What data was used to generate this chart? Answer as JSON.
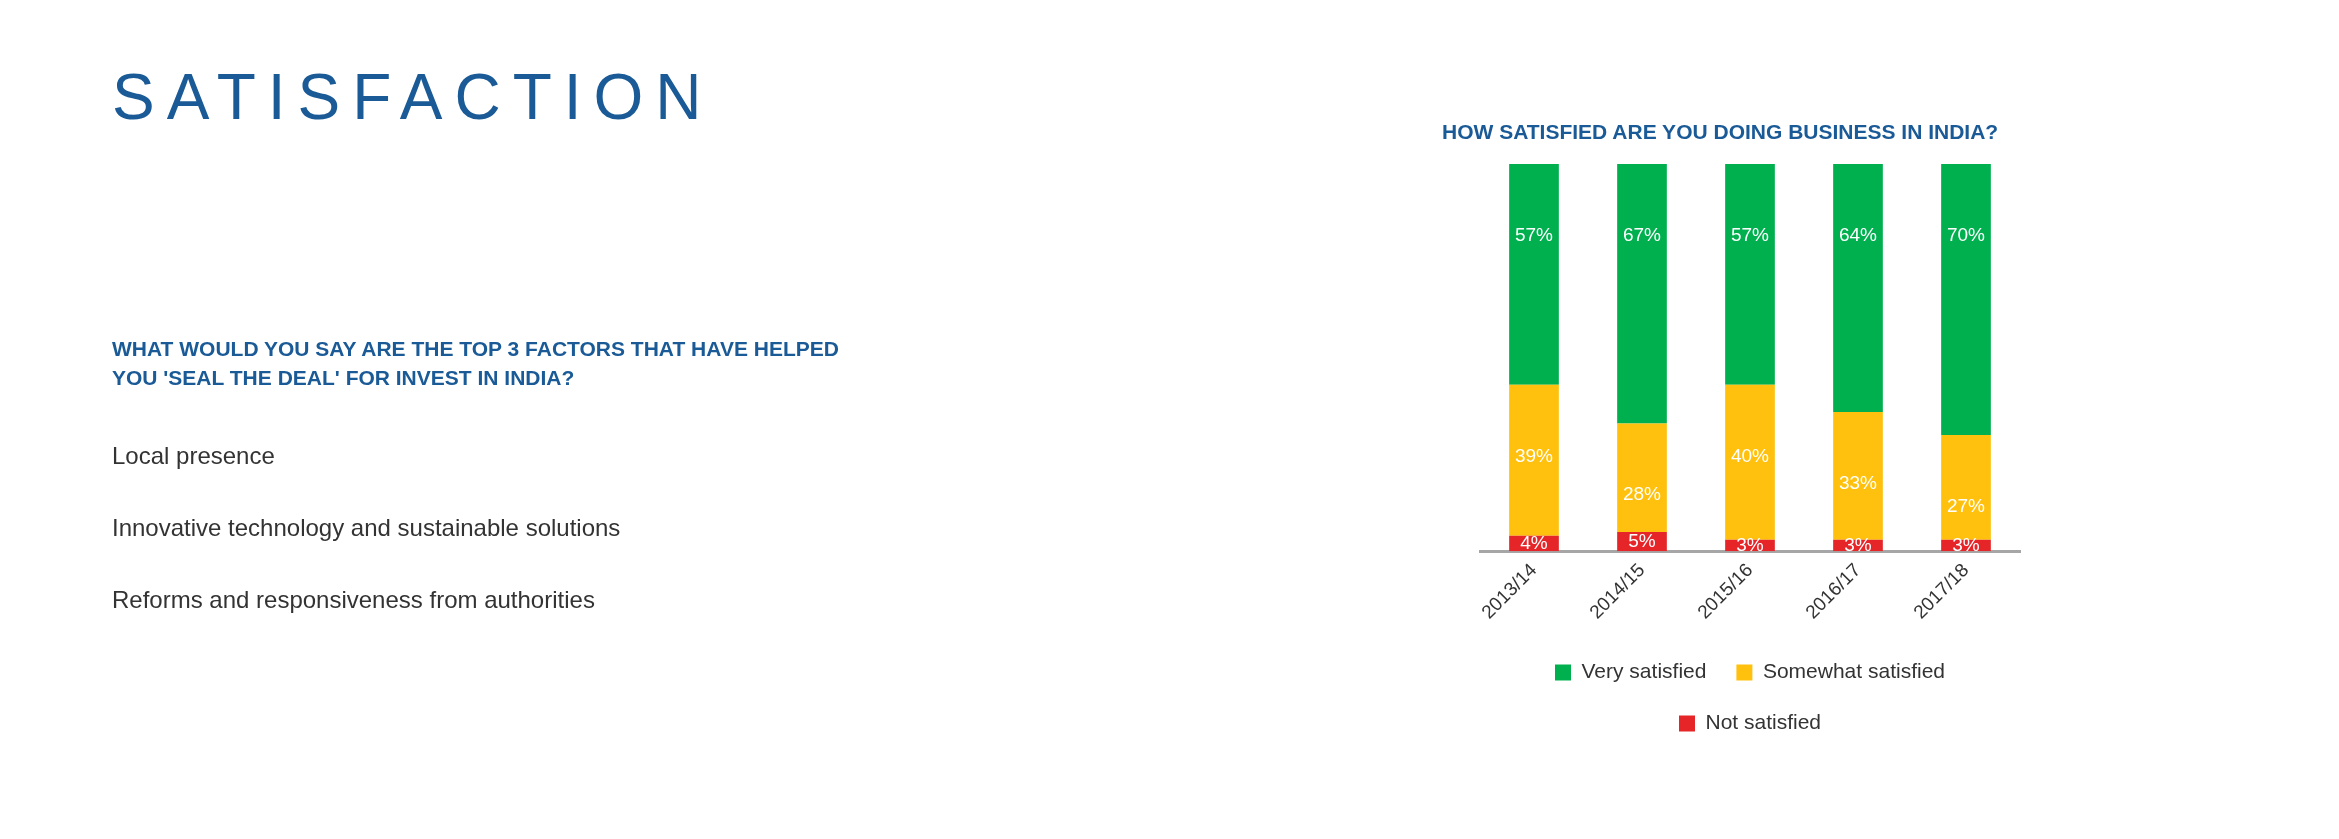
{
  "chart_data": [
    {
      "type": "other",
      "title": "SATISFACTION",
      "subtitle": "WHAT WOULD YOU SAY ARE THE TOP 3 FACTORS THAT HAVE HELPED YOU 'SEAL THE DEAL' FOR INVEST IN INDIA?",
      "annotations": [
        "Local presence",
        "Innovative technology and sustainable solutions",
        "Reforms and responsiveness from authorities"
      ]
    },
    {
      "type": "bar",
      "title": "HOW SATISFIED ARE YOU DOING BUSINESS IN INDIA?",
      "stacked": true,
      "categories": [
        "2013/14",
        "2014/15",
        "2015/16",
        "2016/17",
        "2017/18"
      ],
      "series": [
        {
          "name": "Not satisfied",
          "color": "#e52528",
          "values": [
            4,
            5,
            3,
            3,
            3
          ],
          "value_labels": [
            "4%",
            "5%",
            "3%",
            "3%",
            "3%"
          ]
        },
        {
          "name": "Somewhat satisfied",
          "color": "#ffc10e",
          "values": [
            39,
            28,
            40,
            33,
            27
          ],
          "value_labels": [
            "39%",
            "28%",
            "40%",
            "33%",
            "27%"
          ]
        },
        {
          "name": "Very satisfied",
          "color": "#00b04f",
          "values": [
            57,
            67,
            57,
            64,
            70
          ],
          "value_labels": [
            "57%",
            "67%",
            "57%",
            "64%",
            "70%"
          ]
        }
      ],
      "legend": "bottom",
      "grid": false
    }
  ]
}
